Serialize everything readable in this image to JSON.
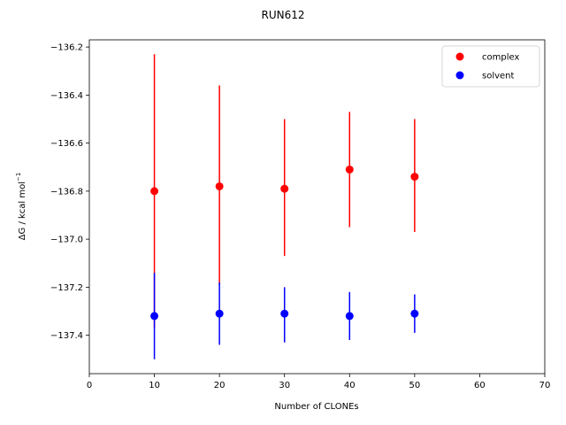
{
  "chart_data": {
    "type": "scatter",
    "title": "RUN612",
    "xlabel": "Number of CLONEs",
    "ylabel": "ΔG / kcal mol",
    "ylabel_superscript": "−1",
    "xlim": [
      0,
      70
    ],
    "ylim": [
      -137.56,
      -136.17
    ],
    "xticks": [
      0,
      10,
      20,
      30,
      40,
      50,
      60,
      70
    ],
    "yticks": [
      -137.4,
      -137.2,
      -137.0,
      -136.8,
      -136.6,
      -136.4,
      -136.2
    ],
    "ytick_labels": [
      "−137.4",
      "−137.2",
      "−137.0",
      "−136.8",
      "−136.6",
      "−136.4",
      "−136.2"
    ],
    "grid": false,
    "legend_position": "top-right",
    "series": [
      {
        "name": "complex",
        "color": "#ff0000",
        "x": [
          10,
          20,
          30,
          40,
          50
        ],
        "y": [
          -136.8,
          -136.78,
          -136.79,
          -136.71,
          -136.74
        ],
        "err_low": [
          -137.37,
          -137.19,
          -137.07,
          -136.95,
          -136.97
        ],
        "err_high": [
          -136.23,
          -136.36,
          -136.5,
          -136.47,
          -136.5
        ]
      },
      {
        "name": "solvent",
        "color": "#0000ff",
        "x": [
          10,
          20,
          30,
          40,
          50
        ],
        "y": [
          -137.32,
          -137.31,
          -137.31,
          -137.32,
          -137.31
        ],
        "err_low": [
          -137.5,
          -137.44,
          -137.43,
          -137.42,
          -137.39
        ],
        "err_high": [
          -137.14,
          -137.18,
          -137.2,
          -137.22,
          -137.23
        ]
      }
    ]
  }
}
